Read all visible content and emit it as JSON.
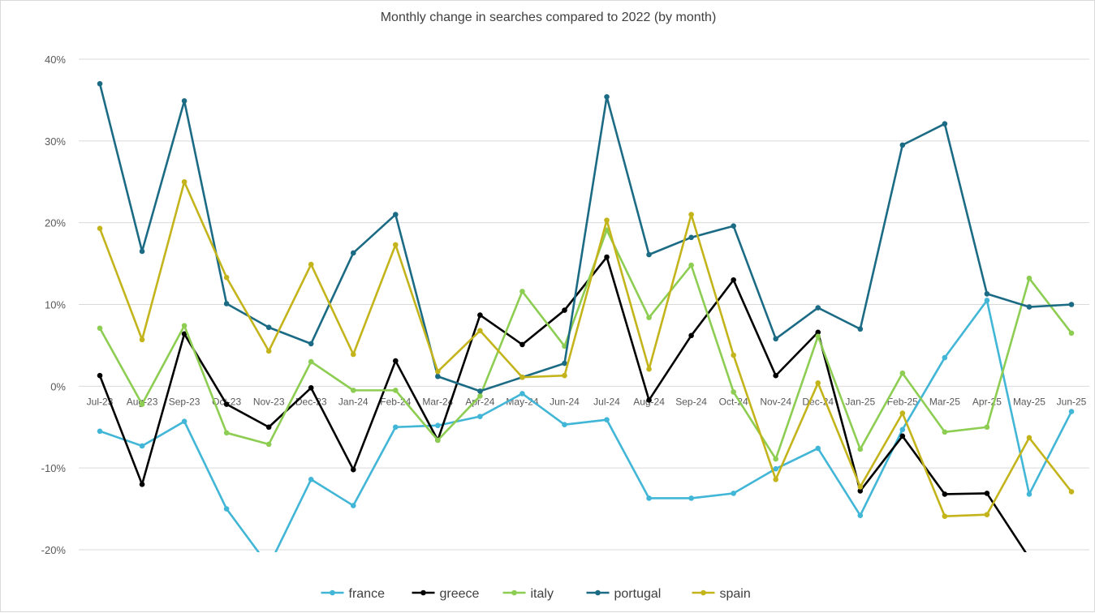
{
  "chart_data": {
    "type": "line",
    "title": "Monthly change in searches compared to 2022 (by month)",
    "xlabel": "",
    "ylabel": "",
    "ylim": [
      -0.2,
      0.4
    ],
    "y_ticks": [
      {
        "value": 0.4,
        "label": "40%"
      },
      {
        "value": 0.3,
        "label": "30%"
      },
      {
        "value": 0.2,
        "label": "20%"
      },
      {
        "value": 0.1,
        "label": "10%"
      },
      {
        "value": 0.0,
        "label": "0%"
      },
      {
        "value": -0.1,
        "label": "-10%"
      },
      {
        "value": -0.2,
        "label": "-20%"
      }
    ],
    "grid": true,
    "legend_position": "bottom",
    "categories": [
      "Jul-23",
      "Aug-23",
      "Sep-23",
      "Oct-23",
      "Nov-23",
      "Dec-23",
      "Jan-24",
      "Feb-24",
      "Mar-24",
      "Apr-24",
      "May-24",
      "Jun-24",
      "Jul-24",
      "Aug-24",
      "Sep-24",
      "Oct-24",
      "Nov-24",
      "Dec-24",
      "Jan-25",
      "Feb-25",
      "Mar-25",
      "Apr-25",
      "May-25",
      "Jun-25"
    ],
    "series": [
      {
        "name": "france",
        "color": "#41b6d6",
        "values": [
          -0.055,
          -0.073,
          -0.043,
          -0.15,
          -0.22,
          -0.114,
          -0.146,
          -0.05,
          -0.048,
          -0.037,
          -0.009,
          -0.047,
          -0.041,
          -0.137,
          -0.137,
          -0.131,
          -0.101,
          -0.076,
          -0.158,
          -0.053,
          0.035,
          0.105,
          -0.132,
          -0.031
        ]
      },
      {
        "name": "greece",
        "color": "#000000",
        "values": [
          0.013,
          -0.12,
          0.064,
          -0.022,
          -0.05,
          -0.002,
          -0.102,
          0.031,
          -0.066,
          0.087,
          0.051,
          0.093,
          0.158,
          -0.017,
          0.062,
          0.13,
          0.013,
          0.066,
          -0.128,
          -0.061,
          -0.132,
          -0.131,
          -0.21,
          null
        ]
      },
      {
        "name": "italy",
        "color": "#8ccd52",
        "values": [
          0.071,
          -0.022,
          0.074,
          -0.057,
          -0.071,
          0.03,
          -0.005,
          -0.005,
          -0.066,
          -0.012,
          0.116,
          0.049,
          0.191,
          0.084,
          0.148,
          -0.007,
          -0.089,
          0.061,
          -0.077,
          0.016,
          -0.056,
          -0.05,
          0.132,
          0.065
        ]
      },
      {
        "name": "portugal",
        "color": "#1c6b85",
        "values": [
          0.37,
          0.165,
          0.349,
          0.101,
          0.072,
          0.052,
          0.163,
          0.21,
          0.012,
          -0.006,
          0.011,
          0.028,
          0.354,
          0.161,
          0.182,
          0.196,
          0.058,
          0.096,
          0.07,
          0.295,
          0.321,
          0.113,
          0.097,
          0.1
        ]
      },
      {
        "name": "spain",
        "color": "#c4b41c",
        "values": [
          0.193,
          0.057,
          0.25,
          0.133,
          0.043,
          0.149,
          0.039,
          0.173,
          0.018,
          0.068,
          0.011,
          0.013,
          0.203,
          0.021,
          0.21,
          0.038,
          -0.114,
          0.004,
          -0.123,
          -0.033,
          -0.159,
          -0.157,
          -0.063,
          -0.129
        ]
      }
    ]
  }
}
